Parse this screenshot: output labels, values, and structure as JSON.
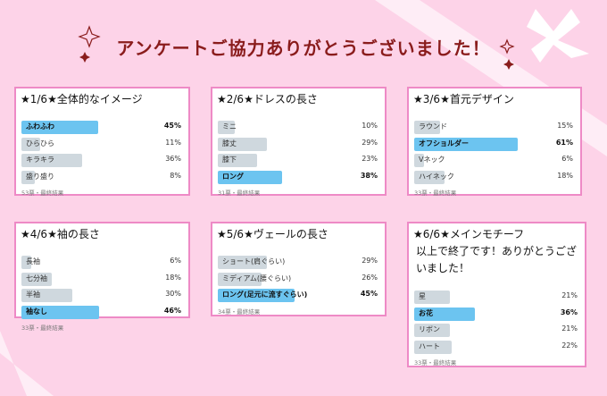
{
  "title": "アンケートご協力ありがとうございました！",
  "chart_data": [
    {
      "type": "bar",
      "title": "★1/6★全体的なイメージ",
      "categories": [
        "ふわふわ",
        "ひらひら",
        "キラキラ",
        "盛り盛り"
      ],
      "values": [
        45,
        11,
        36,
        8
      ],
      "value_labels": [
        "45%",
        "11%",
        "36%",
        "8%"
      ],
      "colors": [
        "#6cc4f0",
        "#cfd8de",
        "#cfd8de",
        "#cfd8de"
      ],
      "footer": "53票・最終結果"
    },
    {
      "type": "bar",
      "title": "★2/6★ドレスの長さ",
      "categories": [
        "ミニ",
        "膝丈",
        "膝下",
        "ロング"
      ],
      "values": [
        10,
        29,
        23,
        38
      ],
      "value_labels": [
        "10%",
        "29%",
        "23%",
        "38%"
      ],
      "colors": [
        "#cfd8de",
        "#cfd8de",
        "#cfd8de",
        "#6cc4f0"
      ],
      "footer": "31票・最終結果"
    },
    {
      "type": "bar",
      "title": "★3/6★首元デザイン",
      "categories": [
        "ラウンド",
        "オフショルダー",
        "Vネック",
        "ハイネック"
      ],
      "values": [
        15,
        61,
        6,
        18
      ],
      "value_labels": [
        "15%",
        "61%",
        "6%",
        "18%"
      ],
      "colors": [
        "#cfd8de",
        "#6cc4f0",
        "#cfd8de",
        "#cfd8de"
      ],
      "footer": "33票・最終結果"
    },
    {
      "type": "bar",
      "title": "★4/6★袖の長さ",
      "categories": [
        "長袖",
        "七分袖",
        "半袖",
        "袖なし"
      ],
      "values": [
        6,
        18,
        30,
        46
      ],
      "value_labels": [
        "6%",
        "18%",
        "30%",
        "46%"
      ],
      "colors": [
        "#cfd8de",
        "#cfd8de",
        "#cfd8de",
        "#6cc4f0"
      ],
      "footer": "33票・最終結果"
    },
    {
      "type": "bar",
      "title": "★5/6★ヴェールの長さ",
      "categories": [
        "ショート(肩ぐらい)",
        "ミディアム(腰ぐらい)",
        "ロング(足元に流すぐらい)"
      ],
      "values": [
        29,
        26,
        45
      ],
      "value_labels": [
        "29%",
        "26%",
        "45%"
      ],
      "colors": [
        "#cfd8de",
        "#cfd8de",
        "#6cc4f0"
      ],
      "footer": "34票・最終結果"
    },
    {
      "type": "bar",
      "title": "★6/6★メインモチーフ",
      "note": "以上で終了です！ありがとうございました！",
      "categories": [
        "星",
        "お花",
        "リボン",
        "ハート"
      ],
      "values": [
        21,
        36,
        21,
        22
      ],
      "value_labels": [
        "21%",
        "36%",
        "21%",
        "22%"
      ],
      "colors": [
        "#cfd8de",
        "#6cc4f0",
        "#cfd8de",
        "#cfd8de"
      ],
      "footer": "33票・最終結果"
    }
  ]
}
